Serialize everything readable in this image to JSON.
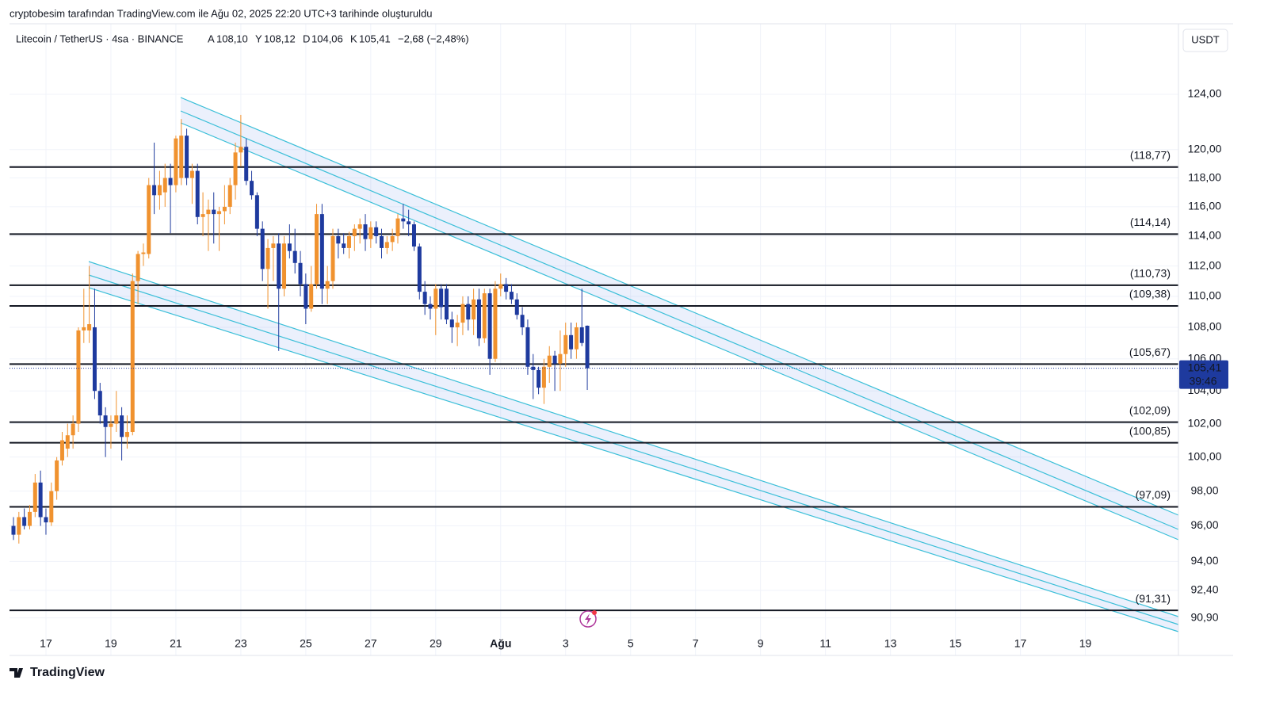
{
  "header": {
    "credit": "cryptobesim tarafından TradingView.com ile Ağu 02, 2025 22:20 UTC+3 tarihinde oluşturuldu",
    "symbol": "Litecoin / TetherUS · 4sa · BINANCE",
    "ohlc_labels": [
      {
        "key": "A",
        "value": "108,10"
      },
      {
        "key": "Y",
        "value": "108,12"
      },
      {
        "key": "D",
        "value": "104,06"
      },
      {
        "key": "K",
        "value": "105,41"
      }
    ],
    "change": "−2,68 (−2,48%)",
    "currency": "USDT",
    "logo": "TradingView"
  },
  "chart_data": {
    "type": "candlestick",
    "log_scale": true,
    "grid": true,
    "up_color": "#f0922f",
    "down_color": "#1e3a9e",
    "ylim": [
      88.9,
      129.3
    ],
    "yticks": [
      {
        "value": 124,
        "label": "124,00"
      },
      {
        "value": 120,
        "label": "120,00"
      },
      {
        "value": 118,
        "label": "118,00"
      },
      {
        "value": 116,
        "label": "116,00"
      },
      {
        "value": 114,
        "label": "114,00"
      },
      {
        "value": 112,
        "label": "112,00"
      },
      {
        "value": 110,
        "label": "110,00"
      },
      {
        "value": 108,
        "label": "108,00"
      },
      {
        "value": 106,
        "label": "106,00"
      },
      {
        "value": 104,
        "label": "104,00"
      },
      {
        "value": 102,
        "label": "102,00"
      },
      {
        "value": 100,
        "label": "100,00"
      },
      {
        "value": 98,
        "label": "98,00"
      },
      {
        "value": 96,
        "label": "96,00"
      },
      {
        "value": 94,
        "label": "94,00"
      },
      {
        "value": 92.4,
        "label": "92,40"
      },
      {
        "value": 90.9,
        "label": "90,90"
      }
    ],
    "xlim": [
      -0.73,
      215.2
    ],
    "xticks": [
      {
        "value": 6,
        "label": "17"
      },
      {
        "value": 18,
        "label": "19"
      },
      {
        "value": 30,
        "label": "21"
      },
      {
        "value": 42,
        "label": "23"
      },
      {
        "value": 54,
        "label": "25"
      },
      {
        "value": 66,
        "label": "27"
      },
      {
        "value": 78,
        "label": "29"
      },
      {
        "value": 90,
        "label": "Ağu"
      },
      {
        "value": 102,
        "label": "3"
      },
      {
        "value": 114,
        "label": "5"
      },
      {
        "value": 126,
        "label": "7"
      },
      {
        "value": 138,
        "label": "9"
      },
      {
        "value": 150,
        "label": "11"
      },
      {
        "value": 162,
        "label": "13"
      },
      {
        "value": 174,
        "label": "15"
      },
      {
        "value": 186,
        "label": "17"
      },
      {
        "value": 198,
        "label": "19"
      }
    ],
    "levels": [
      {
        "value": 118.77,
        "label": "(118,77)"
      },
      {
        "value": 114.14,
        "label": "(114,14)"
      },
      {
        "value": 110.73,
        "label": "(110,73)"
      },
      {
        "value": 109.38,
        "label": "(109,38)"
      },
      {
        "value": 105.67,
        "label": "(105,67)"
      },
      {
        "value": 102.09,
        "label": "(102,09)"
      },
      {
        "value": 100.85,
        "label": "(100,85)"
      },
      {
        "value": 97.09,
        "label": "(97,09)"
      },
      {
        "value": 91.31,
        "label": "(91,31)"
      }
    ],
    "last_price": {
      "value": 105.41,
      "label": "105,41"
    },
    "countdown": "39:46",
    "ohlc": [
      [
        96,
        96.5,
        95.2,
        95.5
      ],
      [
        95.5,
        96.8,
        95,
        96.5
      ],
      [
        96.5,
        97,
        95.8,
        96
      ],
      [
        96,
        97.2,
        95.8,
        96.8
      ],
      [
        96.8,
        99,
        96.5,
        98.5
      ],
      [
        98.5,
        99.2,
        96,
        96.5
      ],
      [
        96.5,
        97,
        95.5,
        96.2
      ],
      [
        96.2,
        98.5,
        96,
        98
      ],
      [
        98,
        100,
        97.5,
        99.8
      ],
      [
        99.8,
        101.5,
        99.5,
        101
      ],
      [
        100.5,
        102,
        100,
        101.3
      ],
      [
        101.3,
        102.5,
        100.5,
        102
      ],
      [
        102,
        108,
        101.5,
        107.8
      ],
      [
        107.8,
        110.5,
        107,
        108
      ],
      [
        107.8,
        112,
        107,
        108.2
      ],
      [
        108,
        110.5,
        103.5,
        104
      ],
      [
        104,
        104.5,
        102,
        102.5
      ],
      [
        102.5,
        103,
        100,
        101.8
      ],
      [
        101.8,
        102.5,
        100.5,
        102
      ],
      [
        102,
        104,
        101.5,
        102.5
      ],
      [
        102.5,
        103,
        99.8,
        101.2
      ],
      [
        101.2,
        102.5,
        100.5,
        101.5
      ],
      [
        101.5,
        111.5,
        101.3,
        111
      ],
      [
        111,
        113,
        109.5,
        112.8
      ],
      [
        112.8,
        113.5,
        112,
        112.9
      ],
      [
        112.8,
        118,
        112.5,
        117.5
      ],
      [
        117.5,
        120.5,
        115.5,
        116.8
      ],
      [
        116.8,
        118.5,
        115.8,
        117.5
      ],
      [
        117,
        119,
        116,
        118
      ],
      [
        118,
        119,
        114.2,
        117.5
      ],
      [
        117.5,
        121,
        117,
        120.8
      ],
      [
        118,
        122.2,
        117.5,
        121
      ],
      [
        121,
        121.5,
        117.5,
        118
      ],
      [
        118,
        119,
        116.2,
        118.5
      ],
      [
        118.5,
        119,
        114.8,
        115.3
      ],
      [
        115.3,
        117,
        114,
        115.5
      ],
      [
        115.5,
        116.5,
        113,
        115.8
      ],
      [
        115.8,
        117,
        113.5,
        115.5
      ],
      [
        115.5,
        116,
        113,
        115.7
      ],
      [
        115.7,
        117.5,
        114.8,
        116
      ],
      [
        116,
        118,
        115.5,
        117.5
      ],
      [
        117.5,
        120.5,
        116.5,
        119.8
      ],
      [
        119.8,
        122.5,
        118.8,
        120.2
      ],
      [
        120.2,
        120.8,
        117.5,
        117.8
      ],
      [
        117.8,
        118.5,
        116.5,
        116.8
      ],
      [
        116.8,
        117,
        114,
        114.5
      ],
      [
        114.5,
        115,
        111,
        111.8
      ],
      [
        111.8,
        113.8,
        109.2,
        113.2
      ],
      [
        113.2,
        114,
        111,
        113.5
      ],
      [
        113.5,
        114.2,
        106.5,
        110.5
      ],
      [
        110.5,
        114,
        110,
        113.5
      ],
      [
        113.5,
        114.8,
        112.5,
        113
      ],
      [
        113,
        114.5,
        111.5,
        112.2
      ],
      [
        112.2,
        113,
        110,
        110.8
      ],
      [
        110.8,
        111.5,
        108.2,
        109.2
      ],
      [
        109.2,
        112,
        109,
        110.8
      ],
      [
        110.8,
        116.2,
        110.5,
        115.5
      ],
      [
        115.5,
        116.2,
        109.5,
        110.5
      ],
      [
        110.5,
        112,
        109.5,
        111
      ],
      [
        111,
        114.5,
        110.5,
        114
      ],
      [
        114,
        114.5,
        112.5,
        113.5
      ],
      [
        113.5,
        114.2,
        112.8,
        113.2
      ],
      [
        113.2,
        114.3,
        112.5,
        114
      ],
      [
        114,
        114.8,
        113,
        114.5
      ],
      [
        114.5,
        115.2,
        113.5,
        114.8
      ],
      [
        114.8,
        115.5,
        113,
        113.8
      ],
      [
        113.8,
        115,
        113.2,
        114.6
      ],
      [
        114.6,
        115,
        113.5,
        114
      ],
      [
        114,
        114.5,
        112.5,
        113.2
      ],
      [
        113.2,
        114,
        112.8,
        113.6
      ],
      [
        113.6,
        114.5,
        113,
        114
      ],
      [
        114,
        115.5,
        113.5,
        115.2
      ],
      [
        115.2,
        116.2,
        114.5,
        115
      ],
      [
        115,
        115.8,
        114,
        114.8
      ],
      [
        114.8,
        115,
        113,
        113.3
      ],
      [
        113.3,
        113.5,
        109.8,
        110.3
      ],
      [
        110.3,
        111,
        108.8,
        109.5
      ],
      [
        109.5,
        110,
        108.5,
        109.2
      ],
      [
        109.2,
        110.8,
        107.5,
        110.5
      ],
      [
        110.5,
        110.8,
        108.5,
        109.3
      ],
      [
        110.5,
        110.8,
        108.2,
        108.5
      ],
      [
        108.5,
        109,
        107,
        108
      ],
      [
        108,
        108.8,
        106.8,
        108.3
      ],
      [
        108.3,
        110,
        107.5,
        109.5
      ],
      [
        109.5,
        110,
        107.8,
        108.5
      ],
      [
        108.5,
        110.5,
        107.5,
        109.8
      ],
      [
        109.8,
        110.5,
        106.8,
        107.3
      ],
      [
        107.3,
        110.5,
        107,
        110.2
      ],
      [
        110.2,
        110.5,
        105,
        106
      ],
      [
        106,
        111,
        105.8,
        110.5
      ],
      [
        110.5,
        111.5,
        110,
        110.8
      ],
      [
        110.8,
        111.2,
        109.8,
        110.3
      ],
      [
        110.3,
        110.8,
        109.5,
        109.8
      ],
      [
        109.8,
        110.2,
        108.5,
        108.8
      ],
      [
        108.8,
        109.3,
        107.5,
        108
      ],
      [
        108,
        108.5,
        105,
        105.5
      ],
      [
        105.5,
        106.3,
        103.5,
        105.3
      ],
      [
        105.3,
        105.5,
        103.8,
        104.2
      ],
      [
        104.2,
        106,
        103.2,
        105.5
      ],
      [
        105.5,
        106.8,
        104.5,
        106.2
      ],
      [
        106.2,
        106.5,
        104,
        105.7
      ],
      [
        105.7,
        107.8,
        104,
        106.3
      ],
      [
        106.3,
        108.3,
        105.5,
        107.5
      ],
      [
        107.5,
        108.3,
        106,
        106.6
      ],
      [
        106.6,
        108.3,
        106,
        108
      ],
      [
        108,
        110.5,
        106.8,
        107
      ],
      [
        108.1,
        108.12,
        104.06,
        105.41
      ]
    ]
  }
}
